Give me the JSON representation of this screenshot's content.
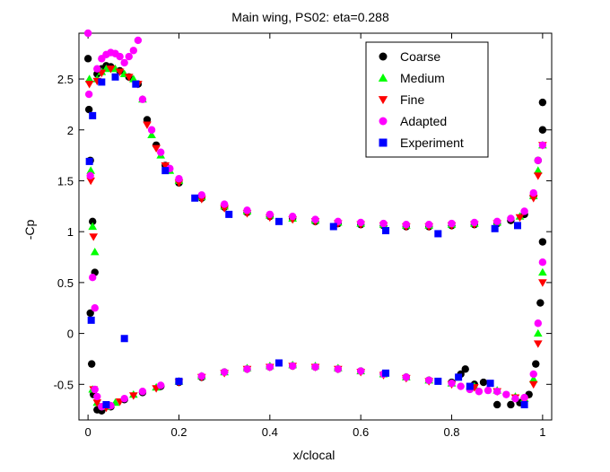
{
  "chart_data": {
    "type": "scatter",
    "title": "Main wing, PS02: eta=0.288",
    "xlabel": "x/clocal",
    "ylabel": "-Cp",
    "xlim": [
      -0.02,
      1.02
    ],
    "ylim": [
      -0.85,
      2.95
    ],
    "x_ticks": [
      0,
      0.2,
      0.4,
      0.6,
      0.8,
      1
    ],
    "x_tick_labels": [
      "0",
      "0.2",
      "0.4",
      "0.6",
      "0.8",
      "1"
    ],
    "y_ticks": [
      -0.5,
      0,
      0.5,
      1,
      1.5,
      2,
      2.5
    ],
    "y_tick_labels": [
      "-0.5",
      "0",
      "0.5",
      "1",
      "1.5",
      "2",
      "2.5"
    ],
    "grid": false,
    "legend_position": "top-right",
    "series": [
      {
        "name": "Coarse",
        "marker": "circle",
        "color": "#000000",
        "upper": [
          [
            0,
            2.7
          ],
          [
            0.002,
            2.2
          ],
          [
            0.005,
            1.7
          ],
          [
            0.01,
            1.1
          ],
          [
            0.015,
            0.6
          ],
          [
            0.02,
            2.55
          ],
          [
            0.03,
            2.6
          ],
          [
            0.04,
            2.63
          ],
          [
            0.05,
            2.62
          ],
          [
            0.07,
            2.58
          ],
          [
            0.09,
            2.52
          ],
          [
            0.11,
            2.45
          ],
          [
            0.13,
            2.1
          ],
          [
            0.15,
            1.85
          ],
          [
            0.17,
            1.65
          ],
          [
            0.2,
            1.48
          ],
          [
            0.25,
            1.33
          ],
          [
            0.3,
            1.24
          ],
          [
            0.35,
            1.19
          ],
          [
            0.4,
            1.15
          ],
          [
            0.45,
            1.13
          ],
          [
            0.5,
            1.1
          ],
          [
            0.55,
            1.08
          ],
          [
            0.6,
            1.07
          ],
          [
            0.65,
            1.06
          ],
          [
            0.7,
            1.05
          ],
          [
            0.75,
            1.05
          ],
          [
            0.8,
            1.06
          ],
          [
            0.85,
            1.07
          ],
          [
            0.9,
            1.08
          ],
          [
            0.93,
            1.11
          ],
          [
            0.96,
            1.17
          ],
          [
            0.98,
            1.35
          ],
          [
            0.99,
            1.7
          ],
          [
            1.0,
            2.27
          ],
          [
            1.0,
            2.0
          ]
        ],
        "lower": [
          [
            0.005,
            0.2
          ],
          [
            0.008,
            -0.3
          ],
          [
            0.012,
            -0.6
          ],
          [
            0.02,
            -0.75
          ],
          [
            0.03,
            -0.76
          ],
          [
            0.05,
            -0.72
          ],
          [
            0.08,
            -0.65
          ],
          [
            0.12,
            -0.58
          ],
          [
            0.16,
            -0.52
          ],
          [
            0.2,
            -0.48
          ],
          [
            0.25,
            -0.43
          ],
          [
            0.3,
            -0.38
          ],
          [
            0.35,
            -0.35
          ],
          [
            0.4,
            -0.33
          ],
          [
            0.45,
            -0.32
          ],
          [
            0.5,
            -0.33
          ],
          [
            0.55,
            -0.35
          ],
          [
            0.6,
            -0.37
          ],
          [
            0.65,
            -0.4
          ],
          [
            0.7,
            -0.43
          ],
          [
            0.75,
            -0.46
          ],
          [
            0.8,
            -0.48
          ],
          [
            0.82,
            -0.4
          ],
          [
            0.83,
            -0.35
          ],
          [
            0.85,
            -0.5
          ],
          [
            0.87,
            -0.48
          ],
          [
            0.9,
            -0.7
          ],
          [
            0.93,
            -0.7
          ],
          [
            0.95,
            -0.68
          ],
          [
            0.97,
            -0.6
          ],
          [
            0.985,
            -0.3
          ],
          [
            0.995,
            0.3
          ],
          [
            1.0,
            0.9
          ]
        ]
      },
      {
        "name": "Medium",
        "marker": "triangle-up",
        "color": "#00ff00",
        "upper": [
          [
            0.003,
            2.5
          ],
          [
            0.006,
            1.6
          ],
          [
            0.01,
            1.05
          ],
          [
            0.015,
            0.8
          ],
          [
            0.02,
            2.5
          ],
          [
            0.03,
            2.57
          ],
          [
            0.04,
            2.6
          ],
          [
            0.06,
            2.6
          ],
          [
            0.08,
            2.55
          ],
          [
            0.1,
            2.5
          ],
          [
            0.12,
            2.3
          ],
          [
            0.14,
            1.95
          ],
          [
            0.16,
            1.75
          ],
          [
            0.18,
            1.6
          ],
          [
            0.2,
            1.5
          ],
          [
            0.25,
            1.34
          ],
          [
            0.3,
            1.25
          ],
          [
            0.35,
            1.2
          ],
          [
            0.4,
            1.16
          ],
          [
            0.45,
            1.13
          ],
          [
            0.5,
            1.11
          ],
          [
            0.55,
            1.09
          ],
          [
            0.6,
            1.08
          ],
          [
            0.65,
            1.07
          ],
          [
            0.7,
            1.06
          ],
          [
            0.75,
            1.06
          ],
          [
            0.8,
            1.07
          ],
          [
            0.85,
            1.08
          ],
          [
            0.9,
            1.09
          ],
          [
            0.95,
            1.15
          ],
          [
            0.98,
            1.35
          ],
          [
            0.99,
            1.6
          ],
          [
            1.0,
            1.85
          ]
        ],
        "lower": [
          [
            0.01,
            -0.55
          ],
          [
            0.02,
            -0.68
          ],
          [
            0.04,
            -0.72
          ],
          [
            0.06,
            -0.68
          ],
          [
            0.1,
            -0.6
          ],
          [
            0.15,
            -0.53
          ],
          [
            0.2,
            -0.47
          ],
          [
            0.25,
            -0.42
          ],
          [
            0.3,
            -0.38
          ],
          [
            0.35,
            -0.34
          ],
          [
            0.4,
            -0.32
          ],
          [
            0.45,
            -0.31
          ],
          [
            0.5,
            -0.32
          ],
          [
            0.55,
            -0.34
          ],
          [
            0.6,
            -0.37
          ],
          [
            0.65,
            -0.4
          ],
          [
            0.7,
            -0.43
          ],
          [
            0.75,
            -0.46
          ],
          [
            0.8,
            -0.49
          ],
          [
            0.85,
            -0.52
          ],
          [
            0.9,
            -0.56
          ],
          [
            0.94,
            -0.62
          ],
          [
            0.96,
            -0.64
          ],
          [
            0.98,
            -0.45
          ],
          [
            0.99,
            0.0
          ],
          [
            1.0,
            0.6
          ]
        ]
      },
      {
        "name": "Fine",
        "marker": "triangle-down",
        "color": "#ff0000",
        "upper": [
          [
            0.003,
            2.45
          ],
          [
            0.006,
            1.5
          ],
          [
            0.012,
            0.95
          ],
          [
            0.02,
            2.48
          ],
          [
            0.03,
            2.56
          ],
          [
            0.05,
            2.6
          ],
          [
            0.07,
            2.57
          ],
          [
            0.09,
            2.52
          ],
          [
            0.11,
            2.45
          ],
          [
            0.13,
            2.05
          ],
          [
            0.15,
            1.82
          ],
          [
            0.17,
            1.65
          ],
          [
            0.2,
            1.48
          ],
          [
            0.25,
            1.32
          ],
          [
            0.3,
            1.23
          ],
          [
            0.35,
            1.18
          ],
          [
            0.4,
            1.14
          ],
          [
            0.45,
            1.12
          ],
          [
            0.5,
            1.1
          ],
          [
            0.55,
            1.08
          ],
          [
            0.6,
            1.07
          ],
          [
            0.65,
            1.06
          ],
          [
            0.7,
            1.05
          ],
          [
            0.75,
            1.05
          ],
          [
            0.8,
            1.06
          ],
          [
            0.85,
            1.07
          ],
          [
            0.9,
            1.08
          ],
          [
            0.95,
            1.14
          ],
          [
            0.98,
            1.33
          ],
          [
            0.99,
            1.55
          ],
          [
            1.0,
            1.85
          ]
        ],
        "lower": [
          [
            0.012,
            -0.55
          ],
          [
            0.02,
            -0.68
          ],
          [
            0.04,
            -0.73
          ],
          [
            0.07,
            -0.67
          ],
          [
            0.1,
            -0.61
          ],
          [
            0.15,
            -0.54
          ],
          [
            0.2,
            -0.48
          ],
          [
            0.25,
            -0.43
          ],
          [
            0.3,
            -0.39
          ],
          [
            0.35,
            -0.35
          ],
          [
            0.4,
            -0.33
          ],
          [
            0.45,
            -0.32
          ],
          [
            0.5,
            -0.33
          ],
          [
            0.55,
            -0.35
          ],
          [
            0.6,
            -0.38
          ],
          [
            0.65,
            -0.41
          ],
          [
            0.7,
            -0.44
          ],
          [
            0.75,
            -0.47
          ],
          [
            0.8,
            -0.5
          ],
          [
            0.85,
            -0.53
          ],
          [
            0.9,
            -0.57
          ],
          [
            0.94,
            -0.63
          ],
          [
            0.96,
            -0.66
          ],
          [
            0.98,
            -0.5
          ],
          [
            0.99,
            -0.1
          ],
          [
            1.0,
            0.5
          ]
        ]
      },
      {
        "name": "Adapted",
        "marker": "circle",
        "color": "#ff00ff",
        "upper": [
          [
            0,
            2.95
          ],
          [
            0.002,
            2.35
          ],
          [
            0.005,
            1.55
          ],
          [
            0.01,
            0.55
          ],
          [
            0.015,
            0.25
          ],
          [
            0.02,
            2.6
          ],
          [
            0.03,
            2.7
          ],
          [
            0.04,
            2.74
          ],
          [
            0.05,
            2.76
          ],
          [
            0.06,
            2.75
          ],
          [
            0.07,
            2.72
          ],
          [
            0.08,
            2.66
          ],
          [
            0.09,
            2.72
          ],
          [
            0.1,
            2.78
          ],
          [
            0.11,
            2.88
          ],
          [
            0.12,
            2.3
          ],
          [
            0.14,
            2.0
          ],
          [
            0.16,
            1.78
          ],
          [
            0.18,
            1.62
          ],
          [
            0.2,
            1.52
          ],
          [
            0.25,
            1.36
          ],
          [
            0.3,
            1.27
          ],
          [
            0.35,
            1.21
          ],
          [
            0.4,
            1.17
          ],
          [
            0.45,
            1.15
          ],
          [
            0.5,
            1.12
          ],
          [
            0.55,
            1.1
          ],
          [
            0.6,
            1.09
          ],
          [
            0.65,
            1.08
          ],
          [
            0.7,
            1.07
          ],
          [
            0.75,
            1.07
          ],
          [
            0.8,
            1.08
          ],
          [
            0.85,
            1.09
          ],
          [
            0.9,
            1.1
          ],
          [
            0.93,
            1.13
          ],
          [
            0.96,
            1.2
          ],
          [
            0.98,
            1.38
          ],
          [
            0.99,
            1.7
          ],
          [
            1.0,
            1.85
          ]
        ],
        "lower": [
          [
            0.015,
            -0.55
          ],
          [
            0.02,
            -0.62
          ],
          [
            0.03,
            -0.72
          ],
          [
            0.05,
            -0.71
          ],
          [
            0.08,
            -0.64
          ],
          [
            0.12,
            -0.57
          ],
          [
            0.16,
            -0.51
          ],
          [
            0.2,
            -0.47
          ],
          [
            0.25,
            -0.42
          ],
          [
            0.3,
            -0.38
          ],
          [
            0.35,
            -0.35
          ],
          [
            0.4,
            -0.33
          ],
          [
            0.45,
            -0.32
          ],
          [
            0.5,
            -0.33
          ],
          [
            0.55,
            -0.35
          ],
          [
            0.6,
            -0.37
          ],
          [
            0.65,
            -0.4
          ],
          [
            0.7,
            -0.43
          ],
          [
            0.75,
            -0.46
          ],
          [
            0.8,
            -0.49
          ],
          [
            0.82,
            -0.52
          ],
          [
            0.84,
            -0.55
          ],
          [
            0.86,
            -0.57
          ],
          [
            0.88,
            -0.56
          ],
          [
            0.9,
            -0.57
          ],
          [
            0.92,
            -0.6
          ],
          [
            0.94,
            -0.64
          ],
          [
            0.96,
            -0.63
          ],
          [
            0.98,
            -0.4
          ],
          [
            0.99,
            0.1
          ],
          [
            1.0,
            0.7
          ]
        ]
      },
      {
        "name": "Experiment",
        "marker": "square",
        "color": "#0000ff",
        "upper": [
          [
            0.003,
            1.69
          ],
          [
            0.01,
            2.14
          ],
          [
            0.03,
            2.47
          ],
          [
            0.06,
            2.52
          ],
          [
            0.105,
            2.45
          ],
          [
            0.17,
            1.6
          ],
          [
            0.235,
            1.33
          ],
          [
            0.31,
            1.17
          ],
          [
            0.42,
            1.1
          ],
          [
            0.54,
            1.05
          ],
          [
            0.655,
            1.01
          ],
          [
            0.77,
            0.98
          ],
          [
            0.895,
            1.03
          ],
          [
            0.945,
            1.06
          ]
        ],
        "lower": [
          [
            0.007,
            0.13
          ],
          [
            0.08,
            -0.05
          ],
          [
            0.04,
            -0.7
          ],
          [
            0.2,
            -0.47
          ],
          [
            0.42,
            -0.29
          ],
          [
            0.655,
            -0.39
          ],
          [
            0.77,
            -0.47
          ],
          [
            0.815,
            -0.43
          ],
          [
            0.84,
            -0.52
          ],
          [
            0.885,
            -0.49
          ],
          [
            0.96,
            -0.7
          ]
        ]
      }
    ]
  }
}
